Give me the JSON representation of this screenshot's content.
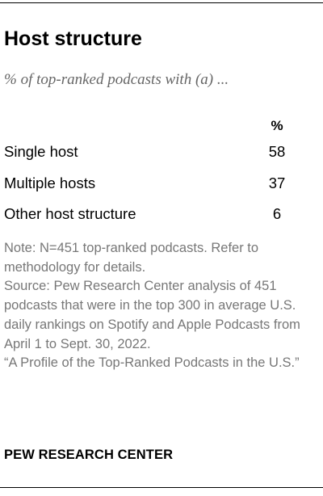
{
  "title": "Host structure",
  "subtitle": "% of top-ranked podcasts with (a) ...",
  "table": {
    "column_header": "%",
    "rows": [
      {
        "label": "Single host",
        "value": "58"
      },
      {
        "label": "Multiple hosts",
        "value": "37"
      },
      {
        "label": "Other host structure",
        "value": "6"
      }
    ]
  },
  "notes": {
    "note": "Note: N=451 top-ranked podcasts. Refer to methodology for details.",
    "source": "Source: Pew Research Center analysis of 451 podcasts that were in the top 300 in average U.S. daily rankings on Spotify and Apple Podcasts from April 1 to Sept. 30, 2022.",
    "report": "“A Profile of the Top-Ranked Podcasts in the U.S.”"
  },
  "brand": "PEW RESEARCH CENTER",
  "chart_data": {
    "type": "table",
    "title": "Host structure",
    "subtitle": "% of top-ranked podcasts with (a) ...",
    "columns": [
      "%"
    ],
    "categories": [
      "Single host",
      "Multiple hosts",
      "Other host structure"
    ],
    "values": [
      58,
      37,
      6
    ]
  },
  "colors": {
    "text": "#000000",
    "subtitle": "#666666",
    "notes": "#777777",
    "rule": "#000000"
  }
}
